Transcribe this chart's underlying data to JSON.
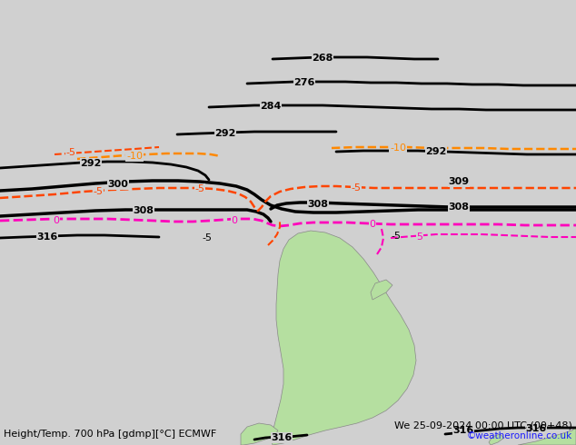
{
  "title_left": "Height/Temp. 700 hPa [gdmp][°C] ECMWF",
  "title_right": "We 25-09-2024 00:00 UTC (00+48)",
  "credit": "©weatheronline.co.uk",
  "bg_color": "#d0d0d0",
  "land_color": "#b5dfa0",
  "border_color": "#888888",
  "hgt_color": "#000000",
  "t0_color": "#ff00bb",
  "tn5_color": "#ff4400",
  "tn10_color": "#ff8800",
  "tp5_color": "#ff00bb",
  "figw": 6.34,
  "figh": 4.9,
  "dpi": 100
}
